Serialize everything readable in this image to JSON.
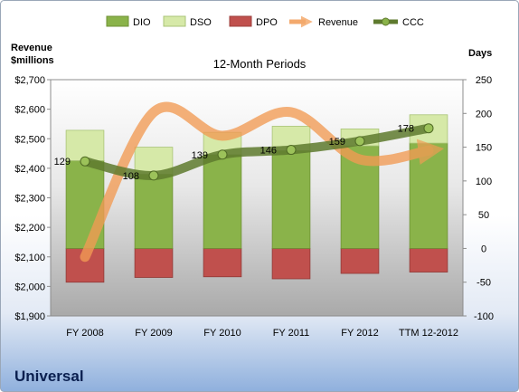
{
  "chart_data": {
    "type": "bar",
    "title": "12-Month Periods",
    "company": "Universal",
    "left_axis_label": [
      "Revenue",
      "$millions"
    ],
    "right_axis_label": "Days",
    "categories": [
      "FY 2008",
      "FY 2009",
      "FY 2010",
      "FY 2011",
      "FY 2012",
      "TTM 12-2012"
    ],
    "left_axis": {
      "min": 1900,
      "max": 2700,
      "step": 100,
      "tick_labels": [
        "$1,900",
        "$2,000",
        "$2,100",
        "$2,200",
        "$2,300",
        "$2,400",
        "$2,500",
        "$2,600",
        "$2,700"
      ]
    },
    "right_axis": {
      "min": -100,
      "max": 250,
      "step": 50,
      "tick_labels": [
        "-100",
        "-50",
        "0",
        "50",
        "100",
        "150",
        "200",
        "250"
      ]
    },
    "legend_position": "top",
    "series": [
      {
        "name": "DIO",
        "axis": "right",
        "type": "stacked-bar",
        "color": "#8ab34a",
        "values": [
          130,
          110,
          139,
          145,
          152,
          156
        ]
      },
      {
        "name": "DSO",
        "axis": "right",
        "type": "stacked-bar",
        "color": "#d6e9a8",
        "values": [
          45,
          40,
          33,
          36,
          25,
          42
        ]
      },
      {
        "name": "DPO",
        "axis": "right",
        "type": "negative-bar",
        "color": "#c0504d",
        "values": [
          -50,
          -43,
          -42,
          -45,
          -37,
          -35
        ]
      },
      {
        "name": "Revenue",
        "axis": "left",
        "type": "line",
        "color": "#f29b54",
        "values": [
          2100,
          2590,
          2510,
          2590,
          2430,
          2460
        ]
      },
      {
        "name": "CCC",
        "axis": "right",
        "type": "line",
        "color": "#5e7a2e",
        "values": [
          129,
          108,
          139,
          146,
          159,
          178
        ]
      }
    ],
    "data_labels": [
      "129",
      "108",
      "139",
      "146",
      "159",
      "178"
    ]
  }
}
